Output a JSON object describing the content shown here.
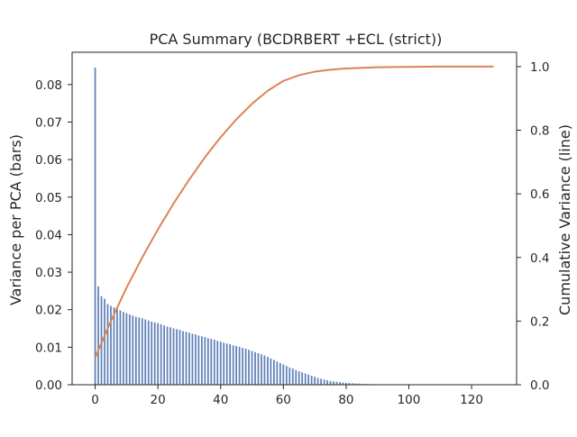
{
  "chart_data": {
    "type": "bar+line",
    "title": "PCA Summary (BCDRBERT +ECL (strict))",
    "xlabel": "",
    "ylabel_left": "Variance per PCA (bars)",
    "ylabel_right": "Cumulative Variance (line)",
    "xlim": [
      -7.35,
      134.35
    ],
    "ylim_left": [
      0,
      0.0886
    ],
    "ylim_right": [
      0,
      1.045
    ],
    "x_ticks": [
      0,
      20,
      40,
      60,
      80,
      100,
      120
    ],
    "x_tick_labels": [
      "0",
      "20",
      "40",
      "60",
      "80",
      "100",
      "120"
    ],
    "y_left_ticks": [
      0,
      0.01,
      0.02,
      0.03,
      0.04,
      0.05,
      0.06,
      0.07,
      0.08
    ],
    "y_left_tick_labels": [
      "0.00",
      "0.01",
      "0.02",
      "0.03",
      "0.04",
      "0.05",
      "0.06",
      "0.07",
      "0.08"
    ],
    "y_right_ticks": [
      0,
      0.2,
      0.4,
      0.6,
      0.8,
      1.0
    ],
    "y_right_tick_labels": [
      "0.0",
      "0.2",
      "0.4",
      "0.6",
      "0.8",
      "1.0"
    ],
    "series": [
      {
        "name": "Variance per PCA",
        "kind": "bar",
        "axis": "left",
        "color": "#4c72b0",
        "x": [
          0,
          1,
          2,
          3,
          4,
          5,
          6,
          7,
          8,
          9,
          10,
          11,
          12,
          13,
          14,
          15,
          16,
          17,
          18,
          19,
          20,
          21,
          22,
          23,
          24,
          25,
          26,
          27,
          28,
          29,
          30,
          31,
          32,
          33,
          34,
          35,
          36,
          37,
          38,
          39,
          40,
          41,
          42,
          43,
          44,
          45,
          46,
          47,
          48,
          49,
          50,
          51,
          52,
          53,
          54,
          55,
          56,
          57,
          58,
          59,
          60,
          61,
          62,
          63,
          64,
          65,
          66,
          67,
          68,
          69,
          70,
          71,
          72,
          73,
          74,
          75,
          76,
          77,
          78,
          79,
          80,
          81,
          82,
          83,
          84,
          85,
          86,
          87,
          88,
          89,
          90,
          91,
          92,
          93,
          94,
          95,
          96,
          97,
          98,
          99,
          100,
          101,
          102,
          103,
          104,
          105,
          106,
          107,
          108,
          109,
          110,
          111,
          112,
          113,
          114,
          115,
          116,
          117,
          118,
          119,
          120,
          121,
          122,
          123,
          124,
          125,
          126,
          127
        ],
        "values": [
          0.0845,
          0.0262,
          0.0236,
          0.0229,
          0.0215,
          0.021,
          0.0206,
          0.0202,
          0.0198,
          0.0194,
          0.0191,
          0.0187,
          0.0184,
          0.0181,
          0.0179,
          0.0177,
          0.0174,
          0.0171,
          0.0168,
          0.0166,
          0.0164,
          0.0161,
          0.0158,
          0.0155,
          0.0153,
          0.015,
          0.0148,
          0.0146,
          0.0143,
          0.0141,
          0.0139,
          0.0136,
          0.0134,
          0.0131,
          0.0129,
          0.0127,
          0.0124,
          0.0122,
          0.012,
          0.0117,
          0.0115,
          0.0112,
          0.011,
          0.0108,
          0.0105,
          0.0103,
          0.0101,
          0.0098,
          0.0096,
          0.0093,
          0.009,
          0.0087,
          0.0084,
          0.0081,
          0.0078,
          0.0074,
          0.007,
          0.0066,
          0.0062,
          0.0058,
          0.0054,
          0.005,
          0.0046,
          0.0043,
          0.0039,
          0.0036,
          0.0033,
          0.003,
          0.0027,
          0.0024,
          0.0021,
          0.0018,
          0.0016,
          0.0014,
          0.0012,
          0.001,
          0.0009,
          0.0008,
          0.0007,
          0.0006,
          0.0005,
          0.00045,
          0.0004,
          0.00035,
          0.0003,
          0.00025,
          0.0002,
          0.00018,
          0.00016,
          0.00014,
          0.00012,
          0.0001,
          9e-05,
          8e-05,
          7e-05,
          6e-05,
          5e-05,
          4e-05,
          3e-05,
          3e-05,
          2e-05,
          2e-05,
          2e-05,
          1e-05,
          1e-05,
          1e-05,
          1e-05,
          1e-05,
          1e-05,
          1e-05,
          1e-05,
          1e-05,
          0,
          0,
          0,
          0,
          0,
          0,
          0,
          0,
          0,
          0,
          0,
          0,
          0,
          0,
          0,
          0
        ]
      },
      {
        "name": "Cumulative Variance",
        "kind": "line",
        "axis": "right",
        "color": "#dd8452",
        "x": [
          0,
          5,
          10,
          15,
          20,
          25,
          30,
          35,
          40,
          45,
          50,
          55,
          60,
          65,
          70,
          75,
          80,
          90,
          100,
          110,
          120,
          127
        ],
        "values": [
          0.085,
          0.2,
          0.305,
          0.4,
          0.488,
          0.57,
          0.645,
          0.715,
          0.778,
          0.834,
          0.883,
          0.924,
          0.955,
          0.973,
          0.984,
          0.99,
          0.994,
          0.998,
          0.999,
          1.0,
          1.0,
          1.0
        ]
      }
    ]
  }
}
